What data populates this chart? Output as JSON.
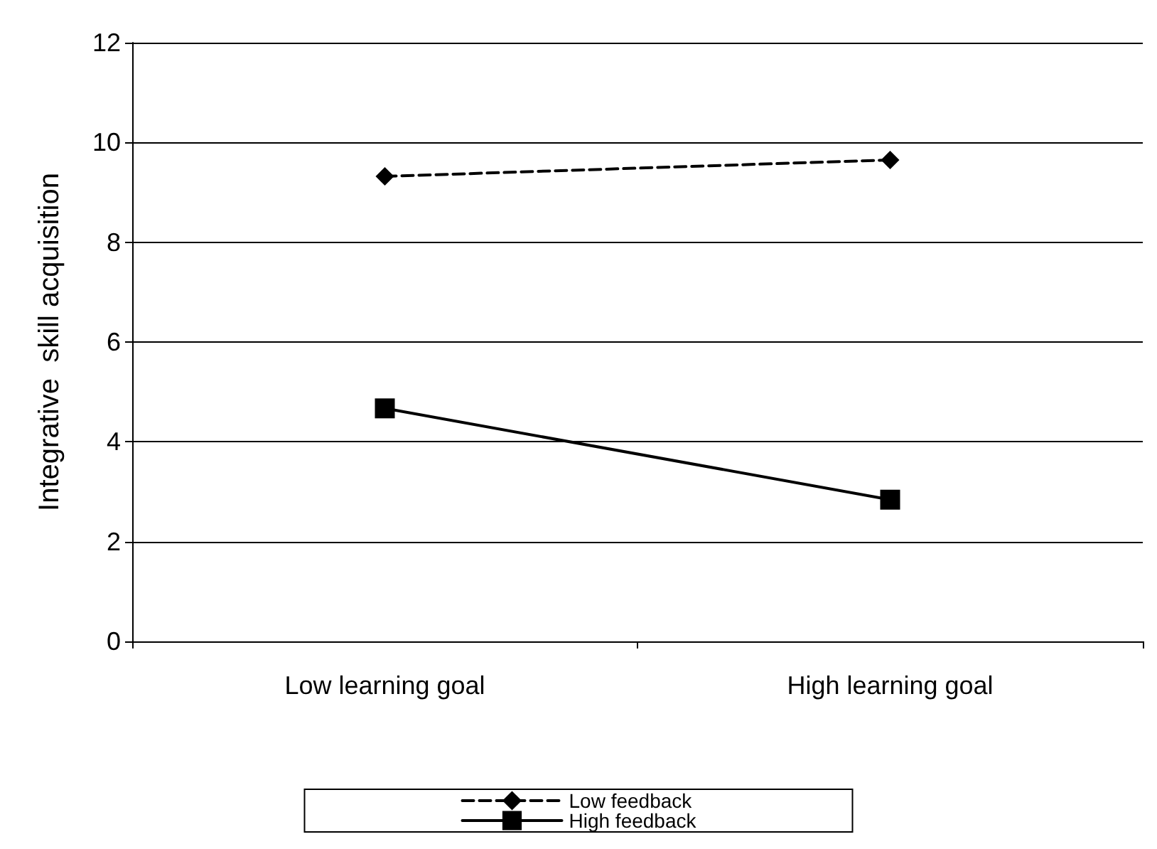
{
  "chart_data": {
    "type": "line",
    "ylabel": "Integrative  skill acquisition",
    "categories": [
      "Low learning goal",
      "High learning goal"
    ],
    "series": [
      {
        "name": "Low feedback",
        "color": "#000000",
        "values": [
          9.32,
          9.65
        ],
        "marker": "diamond",
        "line_style": "dashed"
      },
      {
        "name": "High feedback",
        "color": "#000000",
        "values": [
          4.67,
          2.84
        ],
        "marker": "square",
        "line_style": "solid"
      }
    ],
    "ylim": [
      0,
      12
    ],
    "yticks": [
      0,
      2,
      4,
      6,
      8,
      10,
      12
    ],
    "grid": "y",
    "legend": "bottom"
  }
}
